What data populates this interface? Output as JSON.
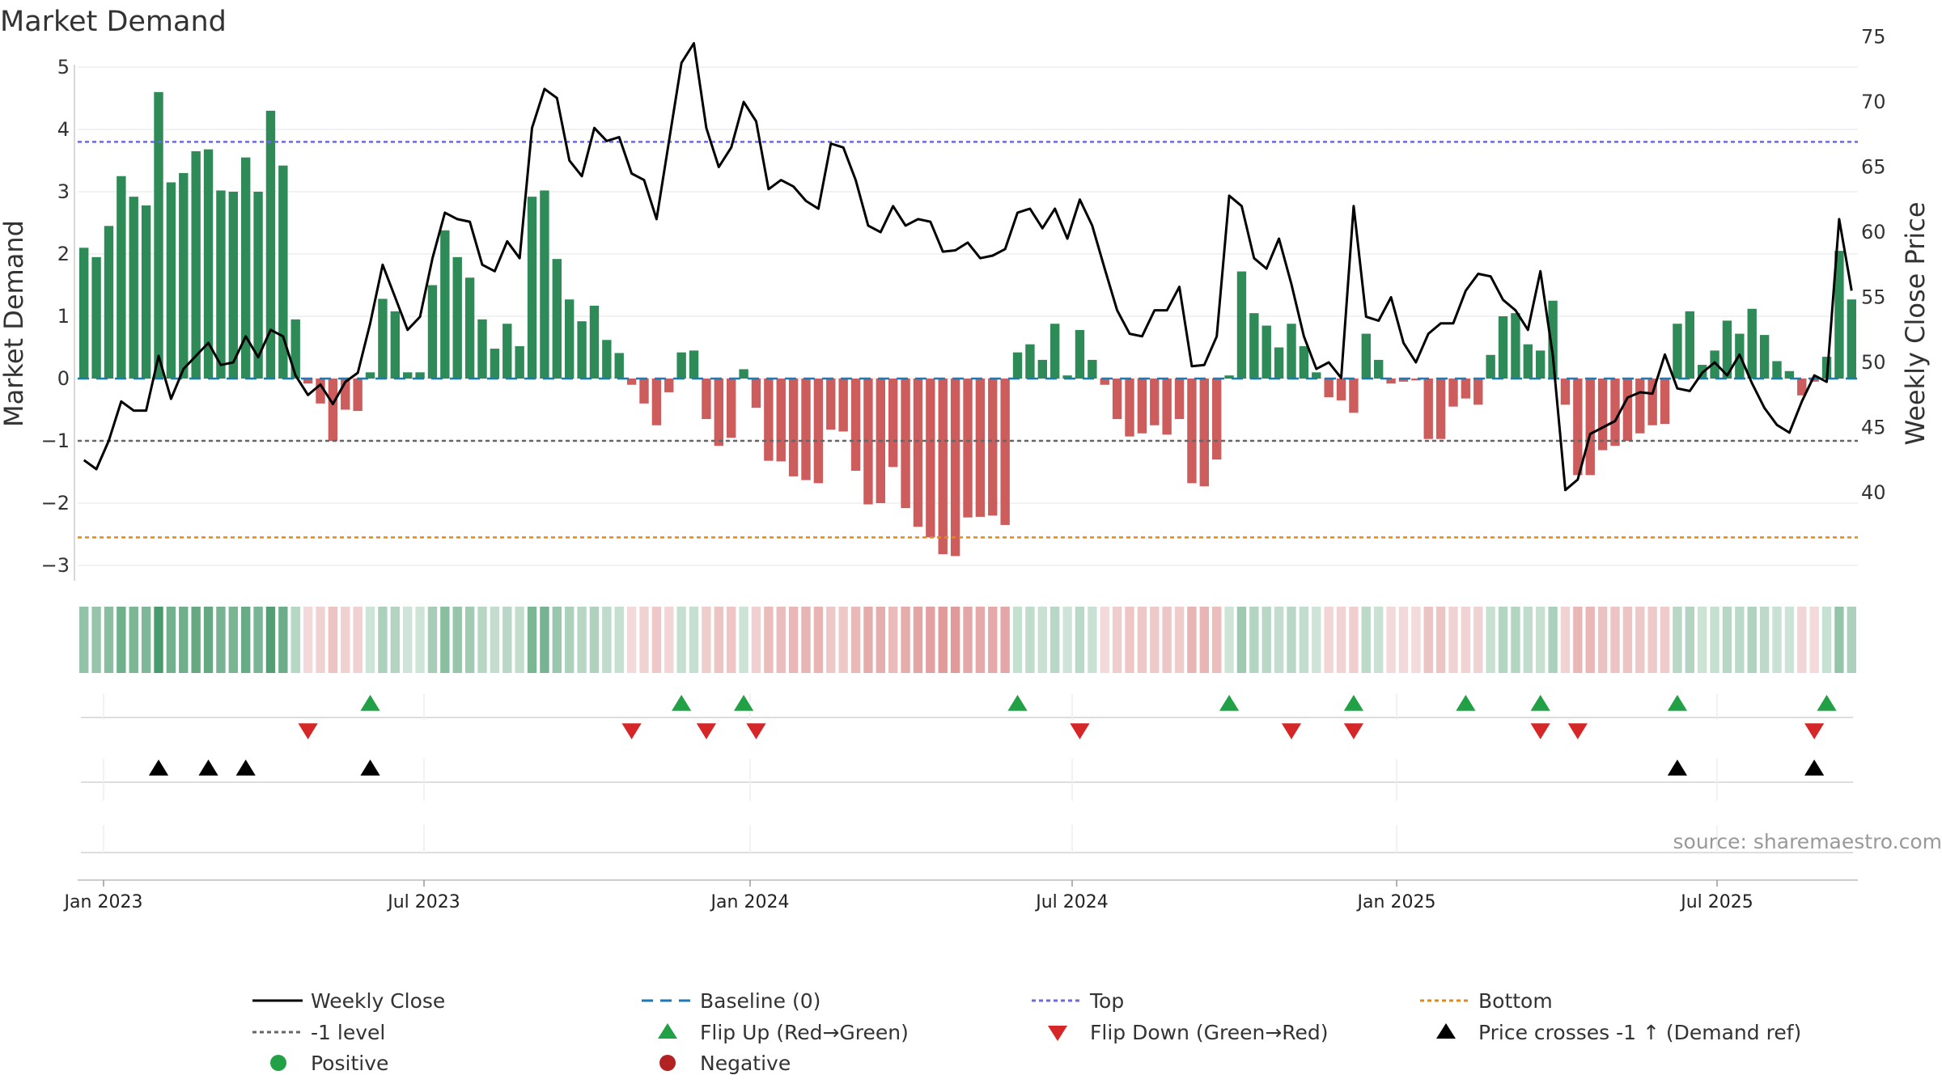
{
  "chart_data": {
    "type": "bar+line",
    "title": "Market Demand",
    "ylabel_left": "Market Demand",
    "ylabel_right": "Weekly Close Price",
    "ylim_left": [
      -3.3,
      5.0
    ],
    "ylim_right": [
      37,
      76
    ],
    "yticks_left": [
      "5",
      "4",
      "3",
      "2",
      "1",
      "0",
      "−1",
      "−2",
      "−3"
    ],
    "yticks_right": [
      "75",
      "70",
      "65",
      "60",
      "55",
      "50",
      "45",
      "40"
    ],
    "date_ticks": [
      "Jan 2023",
      "Jul 2023",
      "Jan 2024",
      "Jul 2024",
      "Jan 2025",
      "Jul 2025"
    ],
    "reference_lines": {
      "top": 3.8,
      "minus_one": -1.0,
      "bottom": -2.55,
      "baseline": 0
    },
    "colors": {
      "positive": "#2e8b57",
      "negative": "#cd5c5c",
      "top": "#6a6adc",
      "bottom": "#e08a1e",
      "minus_one": "#666666",
      "baseline": "#1f77b4",
      "flip_up": "#22a045",
      "flip_down": "#d62728",
      "cross": "#000000",
      "price": "#000000"
    },
    "demand": [
      2.1,
      1.95,
      2.45,
      3.25,
      2.92,
      2.78,
      4.6,
      3.15,
      3.3,
      3.65,
      3.68,
      3.02,
      3.0,
      3.55,
      3.0,
      4.3,
      3.42,
      0.95,
      -0.08,
      -0.4,
      -1.0,
      -0.5,
      -0.52,
      0.1,
      1.28,
      1.08,
      0.1,
      0.1,
      1.5,
      2.38,
      1.95,
      1.62,
      0.95,
      0.48,
      0.88,
      0.52,
      2.92,
      3.02,
      1.92,
      1.27,
      0.92,
      1.17,
      0.62,
      0.41,
      -0.1,
      -0.4,
      -0.75,
      -0.22,
      0.42,
      0.45,
      -0.65,
      -1.08,
      -0.95,
      0.15,
      -0.47,
      -1.32,
      -1.33,
      -1.57,
      -1.63,
      -1.68,
      -0.82,
      -0.85,
      -1.48,
      -2.02,
      -2.0,
      -1.42,
      -2.08,
      -2.38,
      -2.55,
      -2.82,
      -2.85,
      -2.23,
      -2.22,
      -2.2,
      -2.35,
      0.42,
      0.55,
      0.3,
      0.88,
      0.05,
      0.78,
      0.3,
      -0.1,
      -0.65,
      -0.93,
      -0.88,
      -0.75,
      -0.9,
      -0.65,
      -1.68,
      -1.73,
      -1.3,
      0.05,
      1.72,
      1.05,
      0.85,
      0.5,
      0.88,
      0.52,
      0.1,
      -0.3,
      -0.35,
      -0.55,
      0.72,
      0.3,
      -0.08,
      -0.05,
      -0.03,
      -0.97,
      -0.97,
      -0.45,
      -0.32,
      -0.42,
      0.38,
      1.0,
      1.05,
      0.55,
      0.45,
      1.25,
      -0.42,
      -1.55,
      -1.55,
      -1.15,
      -1.08,
      -1.0,
      -0.88,
      -0.75,
      -0.73,
      0.88,
      1.08,
      0.22,
      0.45,
      0.93,
      0.72,
      1.12,
      0.7,
      0.28,
      0.12,
      -0.27,
      -0.05,
      0.35,
      2.05,
      1.27
    ],
    "close": [
      42.5,
      41.8,
      44.0,
      47.0,
      46.3,
      46.3,
      50.5,
      47.2,
      49.5,
      50.5,
      51.5,
      49.8,
      50.0,
      52.0,
      50.4,
      52.5,
      52.0,
      49.0,
      47.5,
      48.3,
      46.8,
      48.5,
      49.2,
      53.0,
      57.5,
      55.0,
      52.5,
      53.5,
      58.0,
      61.5,
      61.0,
      60.8,
      57.5,
      57.0,
      59.3,
      58.0,
      68.0,
      71.0,
      70.3,
      65.5,
      64.3,
      68.0,
      67.0,
      67.3,
      64.5,
      64.0,
      61.0,
      67.0,
      73.0,
      74.5,
      68.0,
      65.0,
      66.5,
      70.0,
      68.5,
      63.3,
      64.0,
      63.5,
      62.4,
      61.8,
      66.8,
      66.5,
      64.0,
      60.5,
      60.0,
      62.0,
      60.5,
      61.0,
      60.8,
      58.5,
      58.6,
      59.2,
      58.0,
      58.2,
      58.7,
      61.5,
      61.8,
      60.3,
      61.8,
      59.5,
      62.5,
      60.5,
      57.2,
      54.0,
      52.2,
      52.0,
      54.0,
      54.0,
      55.8,
      49.7,
      49.8,
      52.0,
      62.8,
      62.0,
      58.0,
      57.2,
      59.5,
      56.0,
      52.0,
      49.5,
      50.0,
      48.8,
      62.0,
      53.5,
      53.2,
      55.0,
      51.5,
      50.0,
      52.2,
      53.0,
      53.0,
      55.5,
      56.8,
      56.6,
      54.8,
      54.0,
      52.5,
      57.0,
      50.5,
      40.2,
      41.0,
      44.5,
      45.0,
      45.5,
      47.3,
      47.7,
      47.6,
      50.6,
      48.0,
      47.8,
      49.2,
      50.0,
      49.0,
      50.6,
      48.4,
      46.5,
      45.2,
      44.6,
      47.0,
      49.0,
      48.5,
      61.0,
      55.5
    ],
    "flip_up_idx": [
      23,
      48,
      53,
      75,
      92,
      102,
      111,
      117,
      128,
      140
    ],
    "flip_down_idx": [
      18,
      44,
      50,
      54,
      80,
      97,
      102,
      117,
      120,
      139
    ],
    "cross_idx": [
      6,
      10,
      13,
      23,
      128,
      139
    ]
  },
  "legend": [
    {
      "label": "Weekly Close",
      "marker": "solid-line"
    },
    {
      "label": "Baseline (0)",
      "marker": "blue-dash"
    },
    {
      "label": "Top",
      "marker": "purple-dot"
    },
    {
      "label": "Bottom",
      "marker": "orange-dot"
    },
    {
      "label": "-1 level",
      "marker": "grey-dot"
    },
    {
      "label": "Flip Up (Red→Green)",
      "marker": "green-triangle-up"
    },
    {
      "label": "Flip Down (Green→Red)",
      "marker": "red-triangle-down"
    },
    {
      "label": "Price crosses -1 ↑ (Demand ref)",
      "marker": "black-triangle-up"
    },
    {
      "label": "Positive",
      "marker": "green-dot"
    },
    {
      "label": "Negative",
      "marker": "red-dot"
    }
  ],
  "source": "source: sharemaestro.com"
}
